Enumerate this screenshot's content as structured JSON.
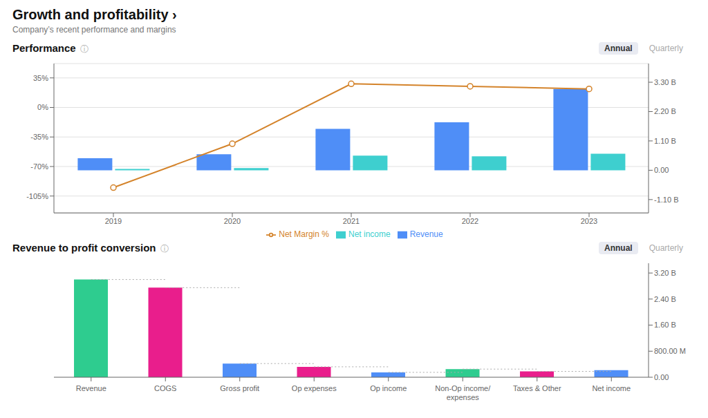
{
  "title": "Growth and profitability ›",
  "subtitle": "Company’s recent performance and margins",
  "chart_data": [
    {
      "type": "bar",
      "title": "Performance",
      "annotations": [
        "ⓘ",
        "Annual",
        "Quarterly"
      ],
      "categories": [
        "2019",
        "2020",
        "2021",
        "2022",
        "2023"
      ],
      "series": [
        {
          "name": "Revenue",
          "type": "bar",
          "axis": "y2",
          "color": "#4f8ef7",
          "values": [
            0.45,
            0.6,
            1.55,
            1.8,
            3.05
          ]
        },
        {
          "name": "Net income",
          "type": "bar",
          "axis": "y2",
          "color": "#3ecfcf",
          "values": [
            0.05,
            0.08,
            0.55,
            0.52,
            0.62
          ]
        },
        {
          "name": "Net Margin %",
          "type": "line",
          "axis": "y",
          "color": "#d4832a",
          "marker": "o",
          "values": [
            -95,
            -43,
            28,
            25,
            22
          ]
        }
      ],
      "ylim": [
        -125,
        52
      ],
      "yticks": [
        {
          "value": -105,
          "label": "-105%"
        },
        {
          "value": -70,
          "label": "-70%"
        },
        {
          "value": -35,
          "label": "-35%"
        },
        {
          "value": 0,
          "label": "0%"
        },
        {
          "value": 35,
          "label": "35%"
        }
      ],
      "y2lim": [
        -1.6,
        4.0
      ],
      "y2ticks": [
        {
          "value": -1.1,
          "label": "-1.10 B"
        },
        {
          "value": 0.0,
          "label": "0.00"
        },
        {
          "value": 1.1,
          "label": "1.10 B"
        },
        {
          "value": 2.2,
          "label": "2.20 B"
        },
        {
          "value": 3.3,
          "label": "3.30 B"
        }
      ],
      "grid": true,
      "legend": "bottom"
    },
    {
      "type": "bar",
      "title": "Revenue to profit conversion",
      "annotations": [
        "ⓘ",
        "Annual",
        "Quarterly"
      ],
      "categories": [
        "Revenue",
        "COGS",
        "Gross profit",
        "Op expenses",
        "Op income",
        "Non-Op income/\nexpenses",
        "Taxes & Other",
        "Net income"
      ],
      "values": [
        3.0,
        2.75,
        0.42,
        0.32,
        0.15,
        0.25,
        0.18,
        0.22
      ],
      "colors": [
        "#2ecc8f",
        "#e91e8c",
        "#4f8ef7",
        "#e91e8c",
        "#4f8ef7",
        "#2ecc8f",
        "#e91e8c",
        "#4f8ef7"
      ],
      "connector_values": [
        3.0,
        2.75,
        0.42,
        0.32,
        0.15,
        0.25,
        0.18
      ],
      "ylim": [
        0,
        3.5
      ],
      "yticks": [
        {
          "value": 0.0,
          "label": "0.00"
        },
        {
          "value": 0.8,
          "label": "800.00 M"
        },
        {
          "value": 1.6,
          "label": "1.60 B"
        },
        {
          "value": 2.4,
          "label": "2.40 B"
        },
        {
          "value": 3.2,
          "label": "3.20 B"
        }
      ],
      "grid": false
    }
  ]
}
